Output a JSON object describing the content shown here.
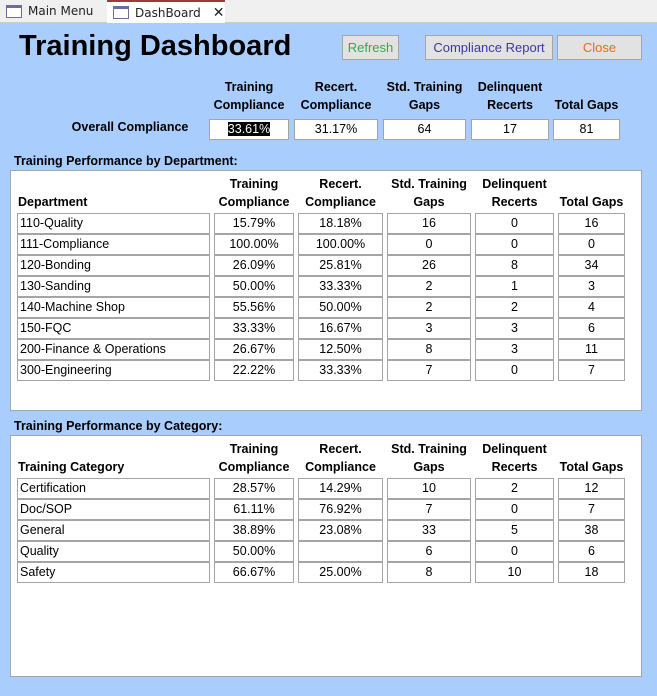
{
  "tabs": [
    {
      "label": "Main Menu",
      "icon": "form-icon"
    },
    {
      "label": "DashBoard",
      "icon": "form-icon",
      "active": true
    }
  ],
  "title": "Training Dashboard",
  "buttons": {
    "refresh": "Refresh",
    "report": "Compliance Report",
    "close": "Close"
  },
  "button_colors": {
    "refresh": "#2eae4e",
    "report": "#3a3a9c",
    "close": "#f26522"
  },
  "columns": [
    "Training Compliance",
    "Recert. Compliance",
    "Std. Training Gaps",
    "Delinquent Recerts",
    "Total Gaps"
  ],
  "overall": {
    "label": "Overall Compliance",
    "values": [
      "33.61%",
      "31.17%",
      "64",
      "17",
      "81"
    ]
  },
  "department": {
    "section": "Training Performance by Department:",
    "first_header": "Department",
    "rows": [
      [
        "110-Quality",
        "15.79%",
        "18.18%",
        "16",
        "0",
        "16"
      ],
      [
        "111-Compliance",
        "100.00%",
        "100.00%",
        "0",
        "0",
        "0"
      ],
      [
        "120-Bonding",
        "26.09%",
        "25.81%",
        "26",
        "8",
        "34"
      ],
      [
        "130-Sanding",
        "50.00%",
        "33.33%",
        "2",
        "1",
        "3"
      ],
      [
        "140-Machine Shop",
        "55.56%",
        "50.00%",
        "2",
        "2",
        "4"
      ],
      [
        "150-FQC",
        "33.33%",
        "16.67%",
        "3",
        "3",
        "6"
      ],
      [
        "200-Finance & Operations",
        "26.67%",
        "12.50%",
        "8",
        "3",
        "11"
      ],
      [
        "300-Engineering",
        "22.22%",
        "33.33%",
        "7",
        "0",
        "7"
      ]
    ]
  },
  "category": {
    "section": "Training Performance by Category:",
    "first_header": "Training Category",
    "rows": [
      [
        "Certification",
        "28.57%",
        "14.29%",
        "10",
        "2",
        "12"
      ],
      [
        "Doc/SOP",
        "61.11%",
        "76.92%",
        "7",
        "0",
        "7"
      ],
      [
        "General",
        "38.89%",
        "23.08%",
        "33",
        "5",
        "38"
      ],
      [
        "Quality",
        "50.00%",
        "",
        "6",
        "0",
        "6"
      ],
      [
        "Safety",
        "66.67%",
        "25.00%",
        "8",
        "10",
        "18"
      ]
    ]
  }
}
